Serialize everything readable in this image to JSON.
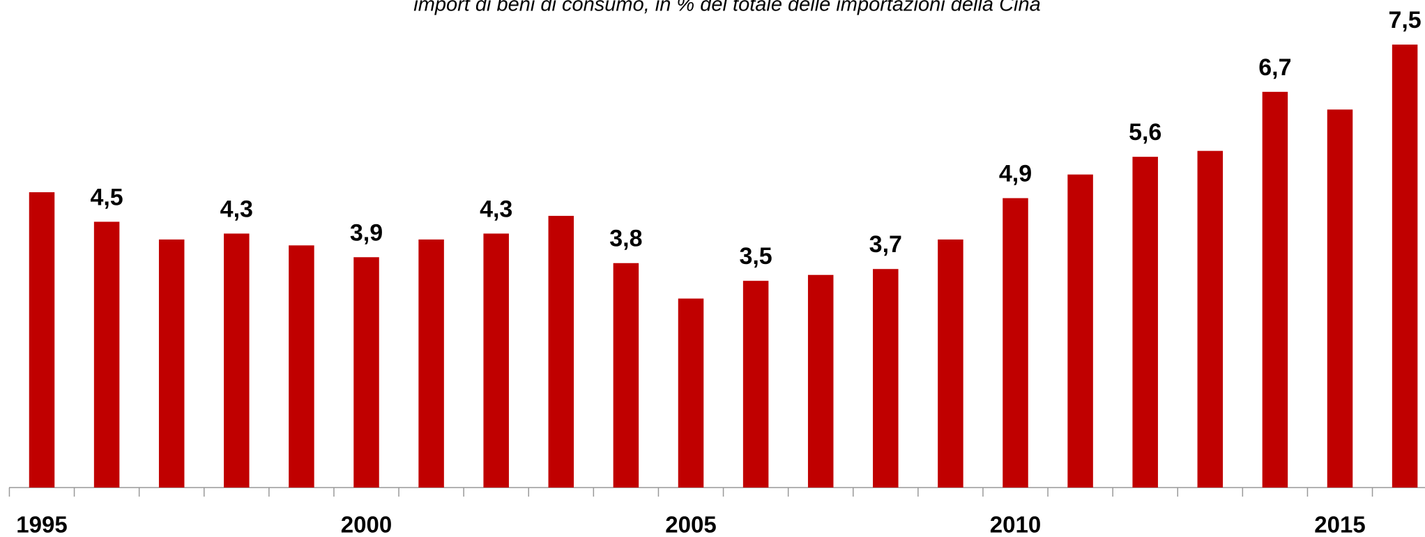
{
  "chart_data": {
    "type": "bar",
    "title": "import di beni di consumo, in % del totale delle importazioni della Cina",
    "categories": [
      "1995",
      null,
      null,
      null,
      null,
      "2000",
      null,
      null,
      null,
      null,
      "2005",
      null,
      null,
      null,
      null,
      "2010",
      null,
      null,
      null,
      null,
      "2015",
      null
    ],
    "values": [
      5.0,
      4.5,
      4.2,
      4.3,
      4.1,
      3.9,
      4.2,
      4.3,
      4.6,
      3.8,
      3.2,
      3.5,
      3.6,
      3.7,
      4.2,
      4.9,
      5.3,
      5.6,
      5.7,
      6.7,
      6.4,
      7.5
    ],
    "value_labels": [
      null,
      "4,5",
      null,
      "4,3",
      null,
      "3,9",
      null,
      "4,3",
      null,
      "3,8",
      null,
      "3,5",
      null,
      "3,7",
      null,
      "4,9",
      null,
      "5,6",
      null,
      "6,7",
      null,
      "7,5"
    ],
    "color": "#c00000"
  }
}
